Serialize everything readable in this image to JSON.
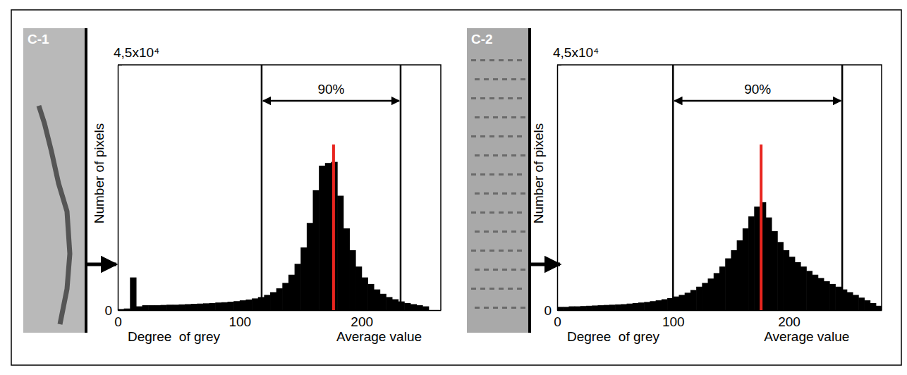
{
  "chart_data": [
    {
      "type": "histogram",
      "panel_label": "C-1",
      "x_label": "Degree  of grey",
      "y_label": "Number of pixels",
      "color": "#000000",
      "bins": [
        0,
        5,
        10,
        15,
        20,
        25,
        30,
        35,
        40,
        45,
        50,
        55,
        60,
        65,
        70,
        75,
        80,
        85,
        90,
        95,
        100,
        105,
        110,
        115,
        120,
        125,
        130,
        135,
        140,
        145,
        150,
        155,
        160,
        165,
        170,
        175,
        180,
        185,
        190,
        195,
        200,
        205,
        210,
        215,
        220,
        225,
        230,
        235,
        240,
        245,
        250,
        255
      ],
      "values": [
        200,
        300,
        6000,
        700,
        900,
        900,
        900,
        950,
        1000,
        1000,
        1050,
        1100,
        1150,
        1200,
        1250,
        1300,
        1400,
        1450,
        1550,
        1650,
        1800,
        1950,
        2150,
        2400,
        2800,
        3300,
        4000,
        5000,
        6500,
        8500,
        11500,
        16000,
        22000,
        26500,
        27000,
        27200,
        21000,
        15000,
        11000,
        8000,
        6000,
        4800,
        3800,
        3000,
        2400,
        2000,
        1600,
        1300,
        1100,
        900,
        700
      ],
      "xlim": [
        0,
        265
      ],
      "ylim": [
        0,
        45000
      ],
      "xticks": [
        0,
        100,
        200
      ],
      "yticks": [
        0,
        {
          "value": 45000,
          "label": "4,5x10⁴"
        }
      ],
      "annotations": {
        "interval": {
          "text": "90%",
          "x": [
            118,
            232
          ],
          "y": 38400
        },
        "average": {
          "text": "Average value",
          "x": 177,
          "y": [
            0,
            30400
          ],
          "color": "#e8251f"
        }
      }
    },
    {
      "type": "histogram",
      "panel_label": "C-2",
      "x_label": "Degree  of grey",
      "y_label": "Number of pixels",
      "color": "#000000",
      "bins": [
        0,
        5,
        10,
        15,
        20,
        25,
        30,
        35,
        40,
        45,
        50,
        55,
        60,
        65,
        70,
        75,
        80,
        85,
        90,
        95,
        100,
        105,
        110,
        115,
        120,
        125,
        130,
        135,
        140,
        145,
        150,
        155,
        160,
        165,
        170,
        175,
        180,
        185,
        190,
        195,
        200,
        205,
        210,
        215,
        220,
        225,
        230,
        235,
        240,
        245,
        250,
        255,
        260,
        265,
        270,
        275,
        280
      ],
      "values": [
        600,
        600,
        700,
        700,
        750,
        800,
        850,
        900,
        950,
        1000,
        1050,
        1100,
        1200,
        1300,
        1400,
        1500,
        1650,
        1800,
        2000,
        2200,
        2500,
        2800,
        3200,
        3700,
        4300,
        5000,
        5800,
        6800,
        8000,
        9500,
        11000,
        12800,
        15000,
        17200,
        19000,
        19800,
        17000,
        14500,
        12500,
        11000,
        9800,
        8800,
        8000,
        7200,
        6500,
        5900,
        5300,
        4800,
        4300,
        3800,
        3300,
        2800,
        2300,
        1800,
        1300,
        800
      ],
      "xlim": [
        0,
        280
      ],
      "ylim": [
        0,
        45000
      ],
      "xticks": [
        0,
        100,
        200
      ],
      "yticks": [
        0,
        {
          "value": 45000,
          "label": "4,5x10⁴"
        }
      ],
      "annotations": {
        "interval": {
          "text": "90%",
          "x": [
            100,
            246
          ],
          "y": 38400
        },
        "average": {
          "text": "Average value",
          "x": 176,
          "y": [
            0,
            30400
          ],
          "color": "#e8251f"
        }
      }
    }
  ]
}
